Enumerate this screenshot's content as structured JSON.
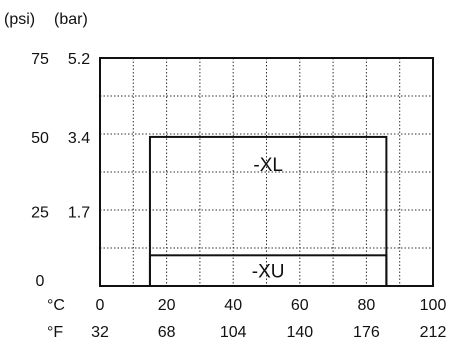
{
  "chart_data": {
    "type": "area",
    "title": "",
    "unit_labels": {
      "left_primary": "(psi)",
      "left_secondary": "(bar)",
      "bottom_primary": "°C",
      "bottom_secondary": "°F"
    },
    "x_range_c": [
      0,
      100
    ],
    "y_range_bar": [
      0,
      5.2
    ],
    "grid": true,
    "x_ticks_c": [
      "0",
      "20",
      "40",
      "60",
      "80",
      "100"
    ],
    "x_ticks_f": [
      "32",
      "68",
      "104",
      "140",
      "176",
      "212"
    ],
    "y_ticks": [
      {
        "bar": 5.2,
        "psi_label": "75",
        "bar_label": "5.2"
      },
      {
        "bar": 3.4,
        "psi_label": "50",
        "bar_label": "3.4"
      },
      {
        "bar": 1.7,
        "psi_label": "25",
        "bar_label": "1.7"
      },
      {
        "bar": 0,
        "psi_label": "0",
        "bar_label": ""
      }
    ],
    "regions": [
      {
        "name": "-XL",
        "t_min_c": 15,
        "t_max_c": 86,
        "p_min_bar": 0,
        "p_max_bar": 3.4
      },
      {
        "name": "-XU",
        "t_min_c": 15,
        "t_max_c": 86,
        "p_min_bar": 0,
        "p_max_bar": 0.7
      }
    ]
  }
}
